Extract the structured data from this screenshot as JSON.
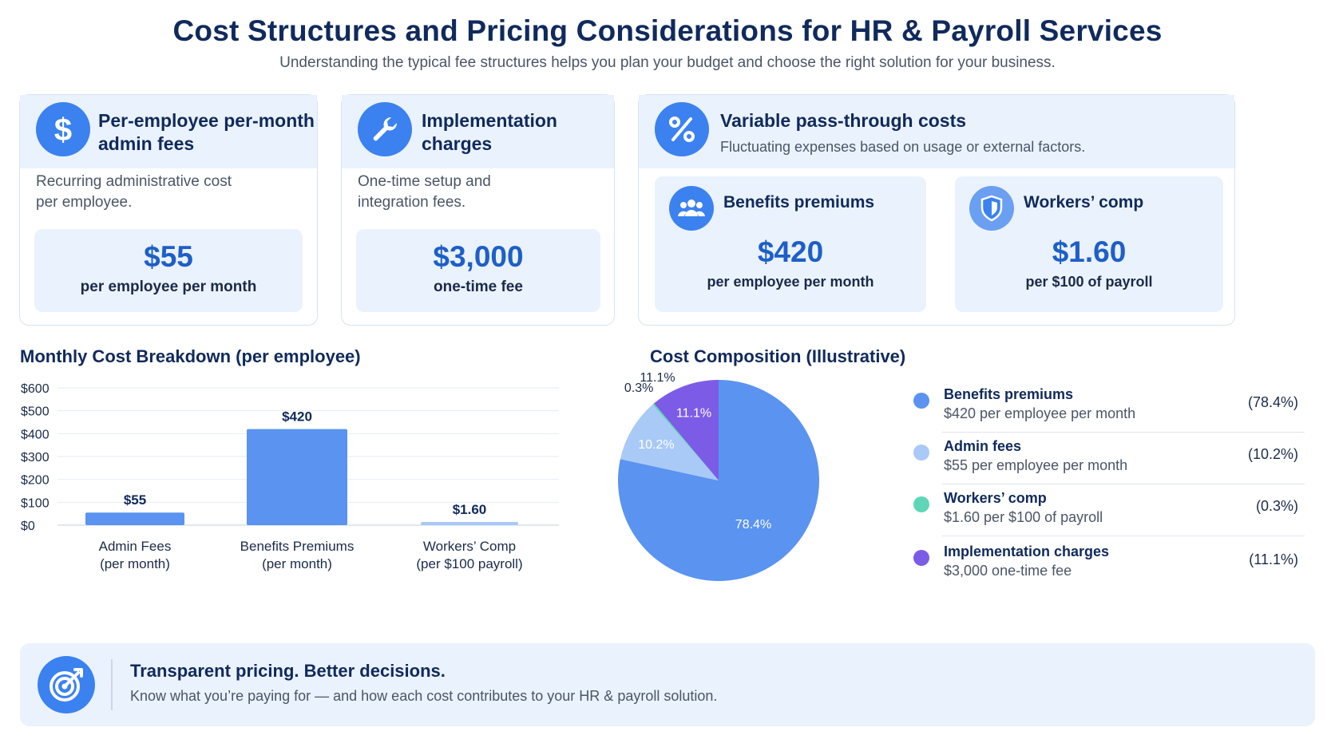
{
  "header": {
    "title": "Cost Structures and Pricing Considerations for HR & Payroll Services",
    "subtitle": "Understanding the typical fee structures helps you plan your budget and choose the right solution for your business."
  },
  "cards": {
    "admin": {
      "icon": "dollar-icon",
      "title_line1": "Per-employee per-month",
      "title_line2": "admin fees",
      "desc_line1": "Recurring administrative cost",
      "desc_line2": "per employee.",
      "value": "$55",
      "unit": "per employee per month"
    },
    "implementation": {
      "icon": "wrench-icon",
      "title_line1": "Implementation",
      "title_line2": "charges",
      "desc_line1": "One-time setup and",
      "desc_line2": "integration fees.",
      "value": "$3,000",
      "unit": "one-time fee"
    },
    "variable": {
      "icon": "percent-icon",
      "title": "Variable pass-through costs",
      "desc": "Fluctuating expenses based on usage or external factors.",
      "benefits": {
        "icon": "people-icon",
        "title": "Benefits premiums",
        "value": "$420",
        "unit": "per employee per month"
      },
      "workers": {
        "icon": "shield-icon",
        "title": "Workers’ comp",
        "value": "$1.60",
        "unit": "per $100 of payroll"
      }
    }
  },
  "bar_section": {
    "title": "Monthly Cost Breakdown (per employee)"
  },
  "pie_section": {
    "title": "Cost Composition (Illustrative)"
  },
  "legend": [
    {
      "name": "Benefits premiums",
      "desc": "$420 per employee per month",
      "pct": "(78.4%)",
      "color": "#5a93f0"
    },
    {
      "name": "Admin fees",
      "desc": "$55 per employee per month",
      "pct": "(10.2%)",
      "color": "#a9c9f7"
    },
    {
      "name": "Workers’ comp",
      "desc": "$1.60 per $100 of payroll",
      "pct": "(0.3%)",
      "color": "#5fd6b8"
    },
    {
      "name": "Implementation charges",
      "desc": "$3,000 one-time fee",
      "pct": "(11.1%)",
      "color": "#7c5ce6"
    }
  ],
  "footer": {
    "icon": "target-icon",
    "title": "Transparent pricing. Better decisions.",
    "desc": "Know what you’re paying for — and how each cost contributes to your HR & payroll solution."
  },
  "chart_data": [
    {
      "type": "bar",
      "title": "Monthly Cost Breakdown (per employee)",
      "categories": [
        [
          "Admin Fees",
          "(per month)"
        ],
        [
          "Benefits Premiums",
          "(per month)"
        ],
        [
          "Workers’ Comp",
          "(per $100 payroll)"
        ]
      ],
      "values": [
        55,
        420,
        1.6
      ],
      "data_labels": [
        "$55",
        "$420",
        "$1.60"
      ],
      "yticks": [
        "$0",
        "$100",
        "$200",
        "$300",
        "$400",
        "$500",
        "$600"
      ],
      "ylim": [
        0,
        600
      ],
      "grid": true,
      "colors": [
        "#5a93f0",
        "#5a93f0",
        "#a9c9f7"
      ]
    },
    {
      "type": "pie",
      "title": "Cost Composition (Illustrative)",
      "labels": [
        "Benefits premiums",
        "Admin fees",
        "Workers’ comp",
        "Implementation charges"
      ],
      "values": [
        78.4,
        10.2,
        0.3,
        11.1
      ],
      "data_labels": [
        "78.4%",
        "10.2%",
        "0.3%",
        "11.1%"
      ],
      "colors": [
        "#5a93f0",
        "#a9c9f7",
        "#5fd6b8",
        "#7c5ce6"
      ],
      "legend": "right"
    }
  ]
}
